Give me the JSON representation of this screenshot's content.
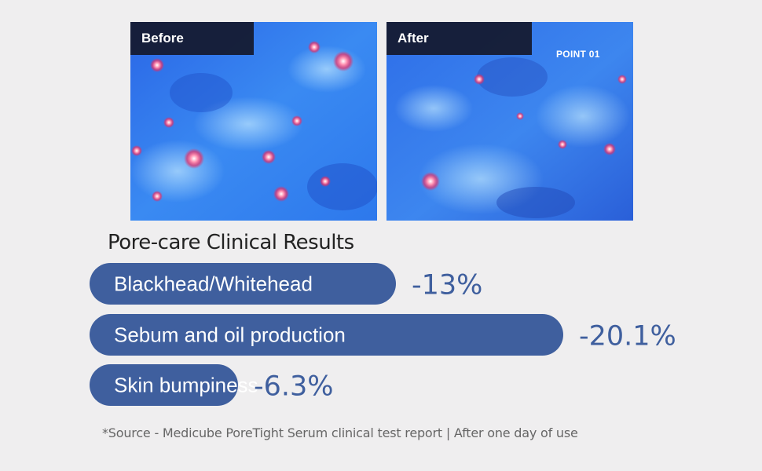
{
  "photos": {
    "before_label": "Before",
    "after_label": "After",
    "after_point_label": "POINT 01"
  },
  "chart_data": {
    "type": "bar",
    "orientation": "horizontal",
    "title": "Pore-care Clinical Results",
    "categories": [
      "Blackhead/Whitehead",
      "Sebum and oil production",
      "Skin bumpiness"
    ],
    "values": [
      -13,
      -20.1,
      -6.3
    ],
    "value_labels": [
      "-13%",
      "-20.1%",
      "-6.3%"
    ],
    "unit": "%",
    "bar_color": "#3f5f9e",
    "value_color": "#3f5f9e",
    "grid": false,
    "legend": "none"
  },
  "footnote": "*Source - Medicube PoreTight Serum clinical test report | After one day of use"
}
